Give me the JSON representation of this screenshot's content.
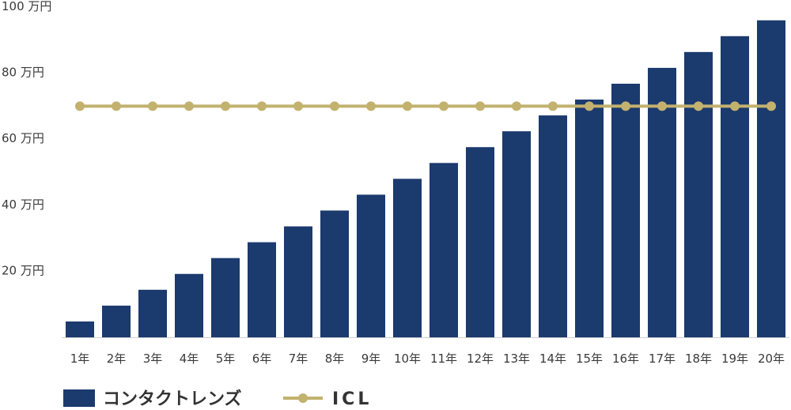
{
  "chart_data": {
    "type": "bar",
    "categories": [
      "1年",
      "2年",
      "3年",
      "4年",
      "5年",
      "6年",
      "7年",
      "8年",
      "9年",
      "10年",
      "11年",
      "12年",
      "13年",
      "14年",
      "15年",
      "16年",
      "17年",
      "18年",
      "19年",
      "20年"
    ],
    "series": [
      {
        "name": "コンタクトレンズ",
        "type": "bar",
        "color": "#1b3a6e",
        "values": [
          4.8,
          9.6,
          14.4,
          19.2,
          24,
          28.8,
          33.6,
          38.4,
          43.2,
          48,
          52.8,
          57.6,
          62.4,
          67.2,
          72,
          76.8,
          81.6,
          86.4,
          91.2,
          96
        ]
      },
      {
        "name": "ICL",
        "type": "line",
        "color": "#c2b26e",
        "values": [
          70,
          70,
          70,
          70,
          70,
          70,
          70,
          70,
          70,
          70,
          70,
          70,
          70,
          70,
          70,
          70,
          70,
          70,
          70,
          70
        ]
      }
    ],
    "y_ticks": [
      {
        "value": 20,
        "label": "20 万円"
      },
      {
        "value": 40,
        "label": "40 万円"
      },
      {
        "value": 60,
        "label": "60 万円"
      },
      {
        "value": 80,
        "label": "80 万円"
      },
      {
        "value": 100,
        "label": "100 万円"
      }
    ],
    "ylim": [
      0,
      100
    ],
    "grid": false,
    "legend_position": "bottom-left"
  }
}
